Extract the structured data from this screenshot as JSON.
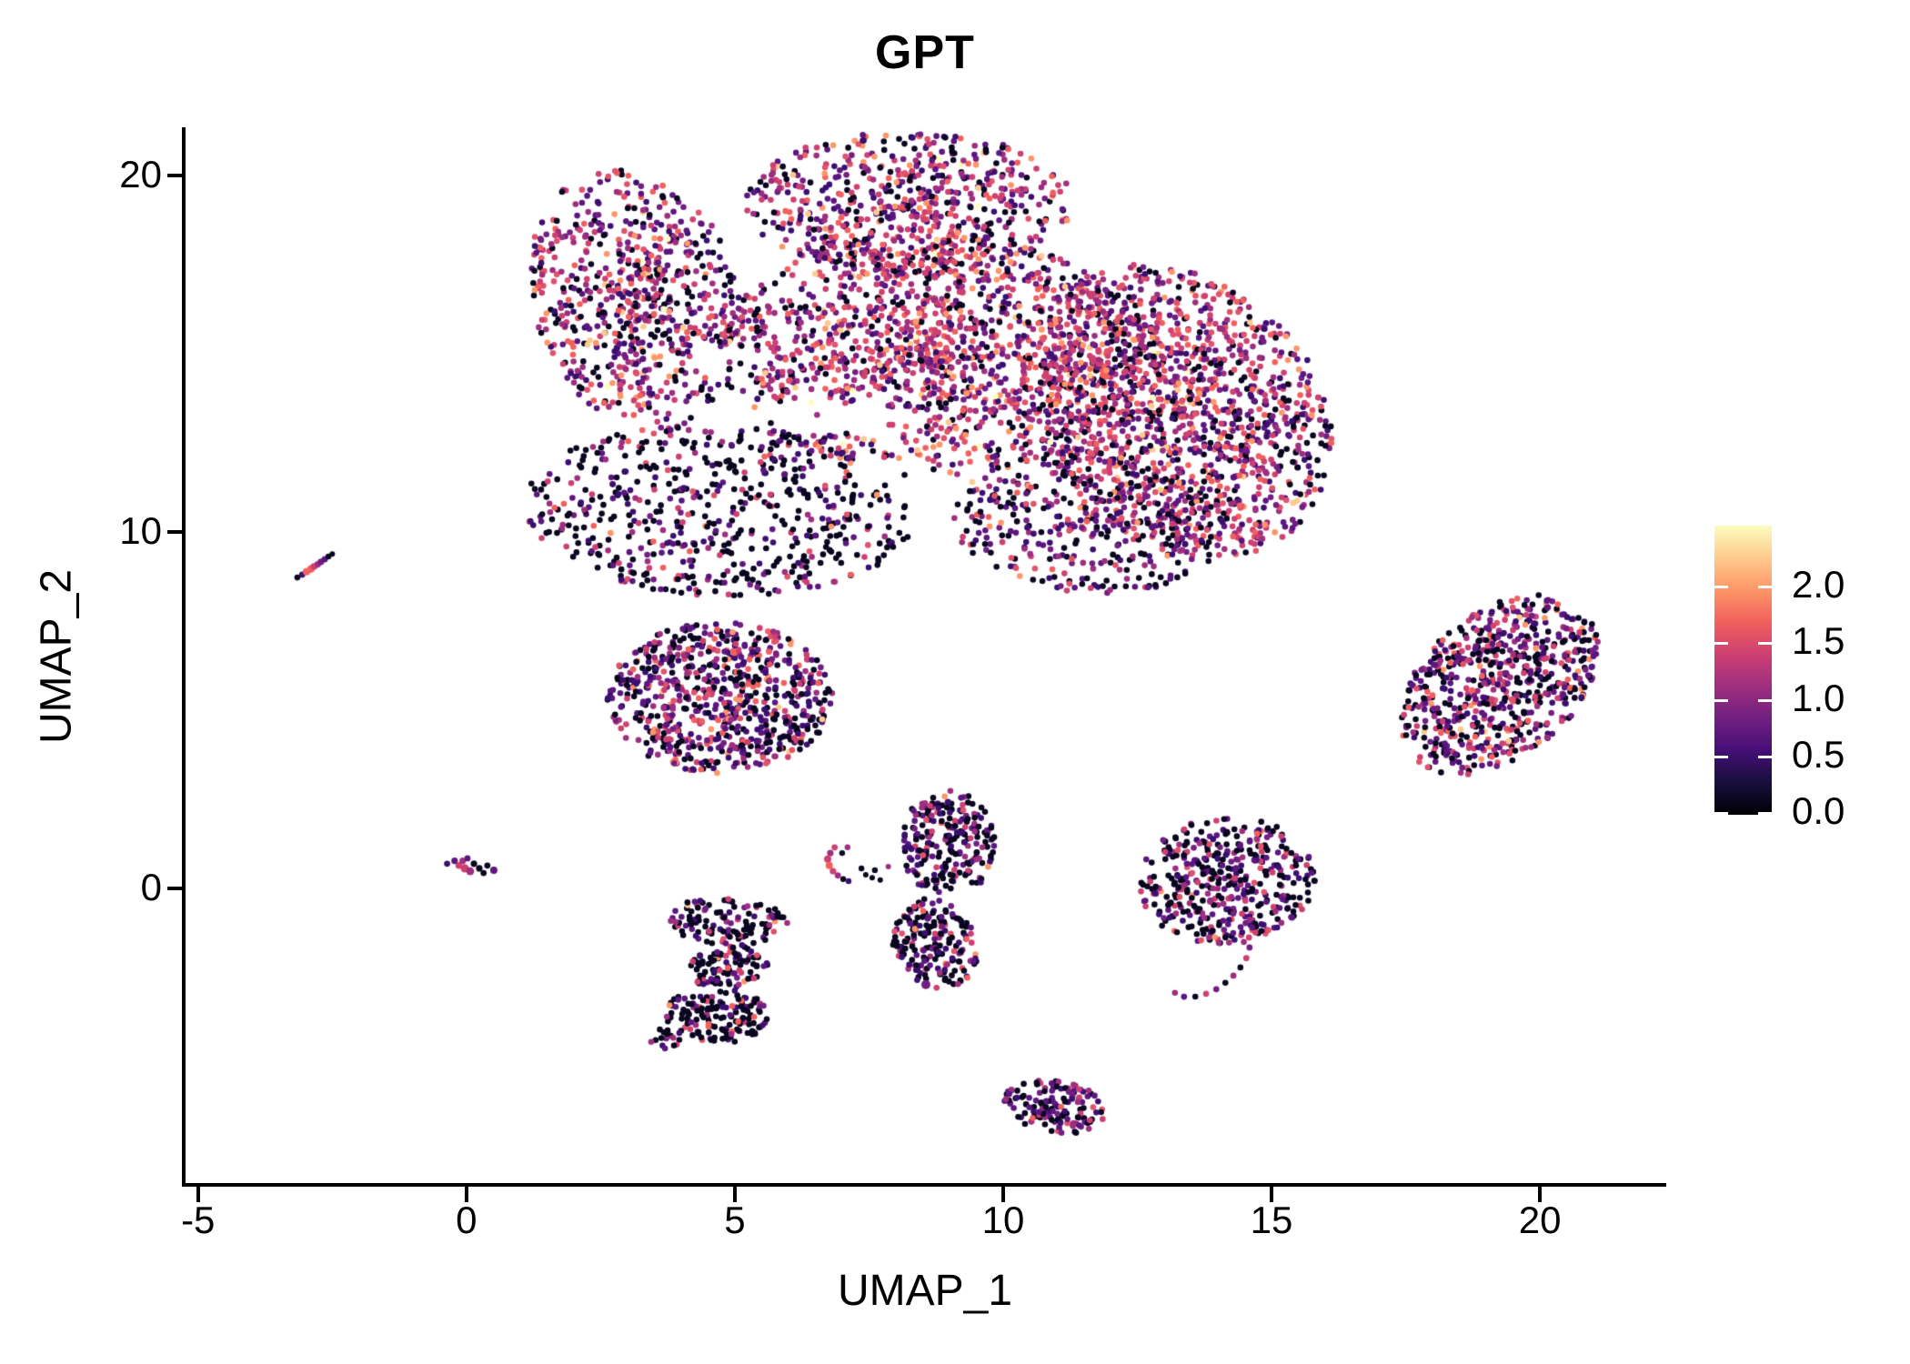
{
  "figure": {
    "title": "GPT"
  },
  "axes": {
    "x": {
      "label": "UMAP_1",
      "min": -5.25,
      "max": 22.32,
      "ticks": [
        -5,
        0,
        5,
        10,
        15,
        20
      ]
    },
    "y": {
      "label": "UMAP_2",
      "min": -8.32,
      "max": 21.3,
      "ticks": [
        0,
        10,
        20
      ]
    }
  },
  "colorbar": {
    "vmin": 0.0,
    "vmax": 2.54,
    "tick_values": [
      2.0,
      1.5,
      1.0,
      0.5,
      0.0
    ],
    "tick_labels": [
      "2.0",
      "1.5",
      "1.0",
      "0.5",
      "0.0"
    ],
    "gradient_top_to_bottom": [
      "#fcfdbf",
      "#feca8d",
      "#fd9668",
      "#f1605d",
      "#cd4071",
      "#9e2f7f",
      "#721f81",
      "#440f76",
      "#180f3d",
      "#000004"
    ]
  },
  "palette": {
    "black": "#0a0620",
    "darkpurple": "#3b0f70",
    "purple": "#5c167f",
    "violet": "#721f81",
    "magenta": "#9e2f7f",
    "crimson": "#cd4071",
    "pink": "#e0536a",
    "salmon": "#f1605d",
    "orange": "#fd9668",
    "peach": "#feca8d",
    "cream": "#fcfdbf"
  },
  "chart_data": {
    "type": "scatter",
    "title": "GPT",
    "xlabel": "UMAP_1",
    "ylabel": "UMAP_2",
    "xlim": [
      -5.25,
      22.32
    ],
    "ylim": [
      -8.32,
      21.3
    ],
    "legend": "expression colorbar 0.0-2.5, magma colormap, right side",
    "default_point_radius": 3.3,
    "color_profiles": {
      "mixed": {
        "black": 0.2,
        "darkpurple": 0.11,
        "purple": 0.13,
        "violet": 0.08,
        "magenta": 0.15,
        "crimson": 0.14,
        "pink": 0.06,
        "salmon": 0.07,
        "orange": 0.04,
        "peach": 0.015,
        "cream": 0.005
      },
      "bright": {
        "black": 0.15,
        "darkpurple": 0.08,
        "purple": 0.11,
        "violet": 0.08,
        "magenta": 0.17,
        "crimson": 0.17,
        "pink": 0.08,
        "salmon": 0.09,
        "orange": 0.05,
        "peach": 0.015,
        "cream": 0.005
      },
      "dark_sparse": {
        "black": 0.55,
        "darkpurple": 0.11,
        "purple": 0.1,
        "violet": 0.05,
        "magenta": 0.07,
        "crimson": 0.05,
        "pink": 0.03,
        "salmon": 0.03,
        "orange": 0.01
      },
      "mid": {
        "black": 0.3,
        "darkpurple": 0.13,
        "purple": 0.15,
        "violet": 0.07,
        "magenta": 0.12,
        "crimson": 0.1,
        "pink": 0.05,
        "salmon": 0.05,
        "orange": 0.025,
        "peach": 0.005
      },
      "black_heavy": {
        "black": 0.55,
        "darkpurple": 0.1,
        "purple": 0.09,
        "violet": 0.04,
        "magenta": 0.07,
        "crimson": 0.07,
        "pink": 0.04,
        "salmon": 0.02,
        "orange": 0.015,
        "peach": 0.005
      },
      "indigo": {
        "black": 0.44,
        "darkpurple": 0.21,
        "purple": 0.13,
        "violet": 0.05,
        "magenta": 0.08,
        "crimson": 0.05,
        "pink": 0.02,
        "salmon": 0.01,
        "orange": 0.01
      },
      "dark_mix": {
        "black": 0.42,
        "darkpurple": 0.13,
        "purple": 0.13,
        "violet": 0.06,
        "magenta": 0.11,
        "crimson": 0.08,
        "pink": 0.04,
        "salmon": 0.02,
        "orange": 0.01
      }
    },
    "clusters": [
      {
        "name": "main-topleft-lobe",
        "profile": "mixed",
        "cx": 3.17,
        "cy": 16.5,
        "rx": 1.95,
        "ry": 3.7,
        "rot": 8,
        "n": 700,
        "bias": 0.6,
        "seed": 11
      },
      {
        "name": "main-top-arc",
        "profile": "mixed",
        "cx": 8.25,
        "cy": 19.2,
        "rx": 3.05,
        "ry": 2.05,
        "rot": 0,
        "n": 650,
        "bias": 0.6,
        "seed": 22
      },
      {
        "name": "main-center",
        "profile": "bright",
        "cx": 8.6,
        "cy": 15.0,
        "rx": 3.9,
        "ry": 3.45,
        "rot": 0,
        "n": 1500,
        "bias": 0.62,
        "seed": 33
      },
      {
        "name": "main-right-lobe",
        "profile": "bright",
        "cx": 13.3,
        "cy": 13.4,
        "rx": 2.7,
        "ry": 4.2,
        "rot": 15,
        "n": 1400,
        "bias": 0.62,
        "seed": 44
      },
      {
        "name": "main-lowerleft-dark",
        "profile": "dark_sparse",
        "cx": 4.7,
        "cy": 10.6,
        "rx": 3.65,
        "ry": 2.4,
        "rot": -5,
        "n": 600,
        "bias": 0.48,
        "seed": 55
      },
      {
        "name": "main-bottom-mid",
        "profile": "mid",
        "cx": 11.6,
        "cy": 10.3,
        "rx": 2.55,
        "ry": 2.05,
        "rot": -10,
        "n": 400,
        "bias": 0.55,
        "seed": 66
      },
      {
        "name": "left-mid-cluster",
        "profile": "mid",
        "cx": 4.72,
        "cy": 5.35,
        "rx": 2.1,
        "ry": 2.12,
        "rot": -8,
        "n": 720,
        "bias": 0.55,
        "seed": 77
      },
      {
        "name": "right-cluster",
        "profile": "mid",
        "cx": 19.25,
        "cy": 5.7,
        "rx": 1.6,
        "ry": 2.7,
        "rot": -25,
        "n": 680,
        "bias": 0.55,
        "seed": 88
      },
      {
        "name": "s-shape-top",
        "profile": "black_heavy",
        "cx": 4.86,
        "cy": -0.92,
        "rx": 1.12,
        "ry": 0.66,
        "rot": -5,
        "n": 120,
        "bias": 0.52,
        "seed": 99
      },
      {
        "name": "s-shape-mid",
        "profile": "black_heavy",
        "cx": 4.9,
        "cy": -2.2,
        "rx": 0.8,
        "ry": 0.6,
        "rot": 15,
        "n": 95,
        "bias": 0.52,
        "seed": 101
      },
      {
        "name": "s-shape-bottom",
        "profile": "black_heavy",
        "cx": 4.66,
        "cy": -3.55,
        "rx": 0.97,
        "ry": 0.78,
        "rot": -10,
        "n": 150,
        "bias": 0.52,
        "seed": 102
      },
      {
        "name": "s-shape-tail",
        "profile": "black_heavy",
        "cx": 3.78,
        "cy": -4.2,
        "rx": 0.38,
        "ry": 0.3,
        "rot": 20,
        "n": 18,
        "bias": 0.52,
        "seed": 103
      },
      {
        "name": "vertical-upper",
        "profile": "indigo",
        "cx": 8.97,
        "cy": 1.25,
        "rx": 0.88,
        "ry": 1.53,
        "rot": 0,
        "n": 230,
        "bias": 0.55,
        "seed": 104
      },
      {
        "name": "vertical-lower",
        "profile": "black_heavy",
        "cx": 8.73,
        "cy": -1.56,
        "rx": 0.78,
        "ry": 1.28,
        "rot": 10,
        "n": 185,
        "bias": 0.55,
        "seed": 105
      },
      {
        "name": "right-mid-cluster",
        "profile": "dark_mix",
        "cx": 14.15,
        "cy": 0.23,
        "rx": 1.67,
        "ry": 1.79,
        "rot": -12,
        "n": 430,
        "bias": 0.55,
        "seed": 106
      },
      {
        "name": "banana-bottom",
        "profile": "dark_mix",
        "cx": 10.97,
        "cy": -6.12,
        "rx": 0.98,
        "ry": 0.72,
        "rot": -22,
        "n": 150,
        "bias": 0.55,
        "seed": 107
      }
    ],
    "voids": [
      {
        "cx": 6.6,
        "cy": 13.2,
        "rx": 1.9,
        "ry": 0.5,
        "rot": -6,
        "p": 0.85
      },
      {
        "cx": 8.25,
        "cy": 11.4,
        "rx": 1.3,
        "ry": 0.42,
        "rot": -25,
        "p": 0.8
      },
      {
        "cx": 4.86,
        "cy": 14.7,
        "rx": 0.75,
        "ry": 0.55,
        "rot": 0,
        "p": 0.7
      },
      {
        "cx": 5.4,
        "cy": 18.3,
        "rx": 0.5,
        "ry": 0.85,
        "rot": 0,
        "p": 0.6
      }
    ],
    "extra_points": [
      [
        -3.15,
        8.72,
        "black",
        3.3
      ],
      [
        -3.06,
        8.8,
        "darkpurple",
        3.4
      ],
      [
        -2.98,
        8.88,
        "salmon",
        4.0
      ],
      [
        -2.9,
        8.96,
        "salmon",
        4.2
      ],
      [
        -2.84,
        9.03,
        "crimson",
        3.8
      ],
      [
        -2.77,
        9.09,
        "magenta",
        3.6
      ],
      [
        -2.71,
        9.16,
        "violet",
        3.6
      ],
      [
        -2.64,
        9.23,
        "purple",
        3.5
      ],
      [
        -2.57,
        9.31,
        "black",
        3.2
      ],
      [
        -2.5,
        9.38,
        "black",
        3.0
      ],
      [
        -0.36,
        0.69,
        "darkpurple",
        3.4
      ],
      [
        -0.22,
        0.77,
        "purple",
        3.6
      ],
      [
        -0.14,
        0.64,
        "crimson",
        3.8
      ],
      [
        -0.07,
        0.77,
        "magenta",
        3.6
      ],
      [
        0.02,
        0.84,
        "purple",
        3.4
      ],
      [
        -0.03,
        0.56,
        "crimson",
        4.6
      ],
      [
        0.07,
        0.48,
        "magenta",
        4.4
      ],
      [
        0.14,
        0.69,
        "black",
        3.6
      ],
      [
        0.24,
        0.56,
        "black",
        3.6
      ],
      [
        0.32,
        0.43,
        "black",
        3.4
      ],
      [
        0.39,
        0.64,
        "black",
        3.4
      ],
      [
        0.51,
        0.51,
        "purple",
        4.0
      ],
      [
        6.86,
        1.15,
        "crimson",
        3.4
      ],
      [
        6.78,
        0.99,
        "magenta",
        3.6
      ],
      [
        6.73,
        0.82,
        "crimson",
        4.0
      ],
      [
        6.76,
        0.64,
        "salmon",
        4.0
      ],
      [
        6.83,
        0.48,
        "crimson",
        3.6
      ],
      [
        6.92,
        0.36,
        "magenta",
        3.4
      ],
      [
        7.02,
        0.26,
        "black",
        3.2
      ],
      [
        7.12,
        0.2,
        "darkpurple",
        3.2
      ],
      [
        7.0,
        0.99,
        "black",
        3.2
      ],
      [
        7.1,
        1.15,
        "magenta",
        3.2
      ],
      [
        7.36,
        0.56,
        "black",
        3.2
      ],
      [
        7.44,
        0.38,
        "black",
        3.0
      ],
      [
        7.61,
        0.51,
        "black",
        3.2
      ],
      [
        7.71,
        0.23,
        "black",
        3.0
      ],
      [
        7.86,
        0.61,
        "magenta",
        3.0
      ],
      [
        7.56,
        0.3,
        "black",
        3.0
      ],
      [
        14.64,
        -1.1,
        "purple",
        3.4
      ],
      [
        14.58,
        -1.38,
        "crimson",
        3.4
      ],
      [
        14.59,
        -1.66,
        "violet",
        3.4
      ],
      [
        14.53,
        -1.96,
        "crimson",
        3.4
      ],
      [
        14.42,
        -2.22,
        "black",
        3.3
      ],
      [
        14.29,
        -2.45,
        "magenta",
        3.4
      ],
      [
        14.14,
        -2.65,
        "black",
        3.3
      ],
      [
        13.97,
        -2.83,
        "violet",
        3.4
      ],
      [
        13.78,
        -2.96,
        "crimson",
        3.3
      ],
      [
        13.58,
        -3.04,
        "black",
        3.3
      ],
      [
        13.37,
        -3.04,
        "purple",
        3.4
      ],
      [
        13.2,
        -2.93,
        "magenta",
        3.3
      ],
      [
        8.56,
        -2.7,
        "violet",
        5.0
      ]
    ]
  }
}
